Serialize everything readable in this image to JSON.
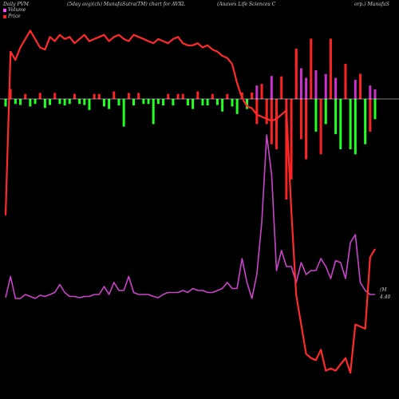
{
  "header": {
    "left": "Daily PVM",
    "middle": "(5day avg)(ch) MunafaSutra(TM) chart for AVXL",
    "right": "(Anavex Life  Sciences C",
    "right2": "orp.) MunafaS"
  },
  "legend": [
    {
      "label": "Volume",
      "color": "#ff44ff"
    },
    {
      "label": "Price",
      "color": "#ff2222"
    }
  ],
  "right_tag": {
    "line1": "(M",
    "line2": "4.40"
  },
  "colors": {
    "price": "#ff2a2a",
    "volume": "#cc44cc",
    "up": "#ff2222",
    "down": "#22ff22",
    "volume_bar": "#cc33cc",
    "zero_line": "#ffffff"
  },
  "chart_data": {
    "type": "line",
    "index": [
      1,
      2,
      3,
      4,
      5,
      6,
      7,
      8,
      9,
      10,
      11,
      12,
      13,
      14,
      15,
      16,
      17,
      18,
      19,
      20,
      21,
      22,
      23,
      24,
      25,
      26,
      27,
      28,
      29,
      30,
      31,
      32,
      33,
      34,
      35,
      36,
      37,
      38,
      39,
      40,
      41,
      42,
      43,
      44,
      45,
      46,
      47,
      48,
      49,
      50,
      51,
      52,
      53,
      54,
      55,
      56,
      57,
      58,
      59,
      60,
      61,
      62,
      63,
      64,
      65,
      66,
      67,
      68,
      69,
      70,
      71,
      72,
      73,
      74,
      75,
      76
    ],
    "price": [
      5.4,
      9.3,
      9.1,
      9.4,
      9.6,
      9.8,
      9.6,
      9.4,
      9.35,
      9.65,
      9.55,
      9.7,
      9.6,
      9.65,
      9.5,
      9.6,
      9.7,
      9.55,
      9.6,
      9.65,
      9.7,
      9.55,
      9.65,
      9.7,
      9.6,
      9.55,
      9.7,
      9.65,
      9.6,
      9.55,
      9.5,
      9.6,
      9.55,
      9.5,
      9.6,
      9.65,
      9.5,
      9.45,
      9.45,
      9.5,
      9.4,
      9.45,
      9.35,
      9.3,
      9.2,
      9.15,
      9.0,
      8.55,
      8.2,
      8.0,
      7.95,
      7.8,
      7.75,
      7.7,
      7.65,
      7.7,
      7.8,
      7.9,
      5.5,
      3.5,
      2.8,
      2.1,
      2.0,
      1.95,
      2.2,
      1.7,
      1.75,
      1.7,
      1.85,
      2.0,
      1.65,
      2.8,
      2.75,
      2.7,
      4.4,
      4.6
    ],
    "volume": [
      4.42,
      4.95,
      4.4,
      4.4,
      4.5,
      4.45,
      4.4,
      4.48,
      4.45,
      4.5,
      4.55,
      4.75,
      4.55,
      4.45,
      4.45,
      4.42,
      4.45,
      4.45,
      4.5,
      4.5,
      4.7,
      4.5,
      4.8,
      4.6,
      4.6,
      4.95,
      4.55,
      4.5,
      4.5,
      4.5,
      4.45,
      4.42,
      4.5,
      4.55,
      4.55,
      4.55,
      4.6,
      4.55,
      4.65,
      4.6,
      4.6,
      4.55,
      4.55,
      4.6,
      4.65,
      4.8,
      4.65,
      4.65,
      5.4,
      4.8,
      4.4,
      5.0,
      6.3,
      8.5,
      7.5,
      5.1,
      5.6,
      5.2,
      5.2,
      4.8,
      5.3,
      5.0,
      5.1,
      5.1,
      5.4,
      5.2,
      4.9,
      5.35,
      5.3,
      4.9,
      5.8,
      6.0,
      4.8,
      4.6,
      4.5,
      4.5
    ],
    "pvm": [
      -1.5,
      2.0,
      -1.0,
      -1.2,
      1.0,
      -1.5,
      -1.0,
      1.2,
      -1.8,
      -1.2,
      1.2,
      -1.0,
      -1.3,
      -1.0,
      1.0,
      -1.0,
      -1.2,
      -2.2,
      1.0,
      1.0,
      -1.5,
      -2.0,
      1.5,
      -1.3,
      -5.5,
      1.2,
      -1.3,
      1.2,
      -1.0,
      -1.0,
      -5.0,
      -1.0,
      -1.3,
      1.0,
      -1.3,
      1.0,
      1.0,
      -1.3,
      -2.0,
      1.5,
      -1.3,
      -1.3,
      1.0,
      -1.2,
      -2.5,
      1.0,
      -1.5,
      -3.0,
      1.3,
      -2.0,
      1.3,
      -5.0,
      3.0,
      -5.0,
      -9.0,
      -10.0,
      4.5,
      -20.0,
      -16.0,
      10.0,
      -8.0,
      -12.0,
      12.0,
      -6.5,
      -11.0,
      -5.0,
      12.0,
      -7.0,
      -10.0,
      7.0,
      -10.0,
      -11.0,
      5.0,
      -9.0,
      -6.5,
      -4.0
    ],
    "pvm_up": [
      false,
      true,
      false,
      false,
      true,
      false,
      false,
      true,
      false,
      false,
      true,
      false,
      false,
      false,
      true,
      false,
      false,
      false,
      true,
      true,
      false,
      false,
      true,
      false,
      false,
      true,
      false,
      true,
      false,
      false,
      false,
      false,
      false,
      true,
      false,
      true,
      true,
      false,
      false,
      true,
      false,
      false,
      true,
      false,
      false,
      true,
      false,
      false,
      true,
      false,
      true,
      true,
      true,
      true,
      true,
      true,
      true,
      true,
      true,
      true,
      true,
      true,
      true,
      false,
      true,
      false,
      true,
      false,
      false,
      true,
      false,
      false,
      true,
      false,
      true,
      false
    ],
    "volbar": [
      0,
      0,
      0,
      0,
      0,
      0,
      0,
      0,
      0,
      0,
      0,
      0,
      0,
      0,
      0,
      0,
      0,
      0,
      0,
      0,
      0,
      0,
      0,
      0,
      0,
      0,
      0,
      0,
      0,
      0,
      0,
      0,
      0,
      0,
      0,
      0,
      0,
      0,
      0,
      0,
      0,
      0,
      0,
      0,
      0,
      0,
      0,
      0,
      0,
      0,
      0,
      3.5,
      0,
      0,
      6.0,
      0,
      0,
      0,
      0,
      13.0,
      8.0,
      5.5,
      0,
      7.5,
      0,
      6.5,
      0,
      5.5,
      0,
      4.5,
      0,
      5.0,
      0,
      0,
      3.5,
      2.5
    ]
  }
}
